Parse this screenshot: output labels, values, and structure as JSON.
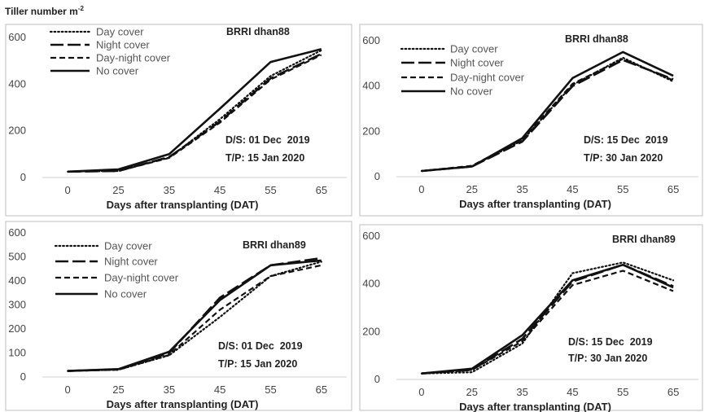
{
  "figure": {
    "ylabel_prefix": "Tiller number m",
    "ylabel_sup": "-2"
  },
  "chart_data": [
    {
      "type": "line",
      "panel": "top-left",
      "variety": "BRRI dhan88",
      "sowing": "D/S: 01 Dec  2019",
      "transplant": "T/P: 15 Jan 2020",
      "xlabel": "Days after transplanting (DAT)",
      "ylabel": "",
      "categories": [
        0,
        25,
        35,
        45,
        55,
        65
      ],
      "ylim": [
        0,
        600
      ],
      "yticks": [
        0,
        200,
        400,
        600
      ],
      "legend_position": "top-left",
      "series": [
        {
          "name": "Day cover",
          "style": "dotted",
          "values": [
            25,
            30,
            85,
            250,
            435,
            545
          ]
        },
        {
          "name": "Night cover",
          "style": "longdash",
          "values": [
            25,
            28,
            88,
            240,
            425,
            530
          ]
        },
        {
          "name": "Day-night cover",
          "style": "dashed",
          "values": [
            25,
            28,
            84,
            235,
            420,
            525
          ]
        },
        {
          "name": "No cover",
          "style": "solid",
          "values": [
            25,
            35,
            100,
            295,
            495,
            550
          ]
        }
      ]
    },
    {
      "type": "line",
      "panel": "top-right",
      "variety": "BRRI dhan88",
      "sowing": "D/S: 15 Dec  2019",
      "transplant": "T/P: 30 Jan 2020",
      "xlabel": "Days after transplanting (DAT)",
      "ylabel": "",
      "categories": [
        0,
        25,
        35,
        45,
        55,
        65
      ],
      "ylim": [
        0,
        600
      ],
      "yticks": [
        0,
        200,
        400,
        600
      ],
      "legend_position": "top-left",
      "series": [
        {
          "name": "Day cover",
          "style": "dotted",
          "values": [
            25,
            45,
            160,
            405,
            525,
            420
          ]
        },
        {
          "name": "Night cover",
          "style": "longdash",
          "values": [
            25,
            45,
            155,
            400,
            515,
            430
          ]
        },
        {
          "name": "Day-night cover",
          "style": "dashed",
          "values": [
            25,
            48,
            165,
            410,
            520,
            425
          ]
        },
        {
          "name": "No cover",
          "style": "solid",
          "values": [
            25,
            45,
            170,
            435,
            550,
            445
          ]
        }
      ]
    },
    {
      "type": "line",
      "panel": "bottom-left",
      "variety": "BRRI dhan89",
      "sowing": "D/S: 01 Dec  2019",
      "transplant": "T/P: 15 Jan 2020",
      "xlabel": "Days after transplanting (DAT)",
      "ylabel": "",
      "categories": [
        0,
        25,
        35,
        45,
        55,
        65
      ],
      "ylim": [
        0,
        600
      ],
      "yticks": [
        0,
        100,
        200,
        300,
        400,
        500,
        600
      ],
      "legend_position": "top-left",
      "series": [
        {
          "name": "Day cover",
          "style": "dotted",
          "values": [
            25,
            30,
            90,
            250,
            420,
            480
          ]
        },
        {
          "name": "Night cover",
          "style": "longdash",
          "values": [
            25,
            32,
            100,
            330,
            465,
            495
          ]
        },
        {
          "name": "Day-night cover",
          "style": "dashed",
          "values": [
            25,
            30,
            92,
            280,
            420,
            465
          ]
        },
        {
          "name": "No cover",
          "style": "solid",
          "values": [
            25,
            33,
            105,
            320,
            465,
            485
          ]
        }
      ]
    },
    {
      "type": "line",
      "panel": "bottom-right",
      "variety": "BRRI dhan89",
      "sowing": "D/S: 15 Dec  2019",
      "transplant": "T/P: 30 Jan 2020",
      "xlabel": "Days after transplanting (DAT)",
      "ylabel": "",
      "categories": [
        0,
        25,
        35,
        45,
        55,
        65
      ],
      "ylim": [
        0,
        600
      ],
      "yticks": [
        0,
        200,
        400,
        600
      ],
      "legend_position": "none",
      "series": [
        {
          "name": "Day cover",
          "style": "dotted",
          "values": [
            25,
            30,
            150,
            445,
            490,
            415
          ]
        },
        {
          "name": "Night cover",
          "style": "longdash",
          "values": [
            25,
            40,
            170,
            410,
            480,
            390
          ]
        },
        {
          "name": "Day-night cover",
          "style": "dashed",
          "values": [
            25,
            40,
            160,
            395,
            455,
            370
          ]
        },
        {
          "name": "No cover",
          "style": "solid",
          "values": [
            25,
            45,
            185,
            415,
            480,
            385
          ]
        }
      ]
    }
  ]
}
